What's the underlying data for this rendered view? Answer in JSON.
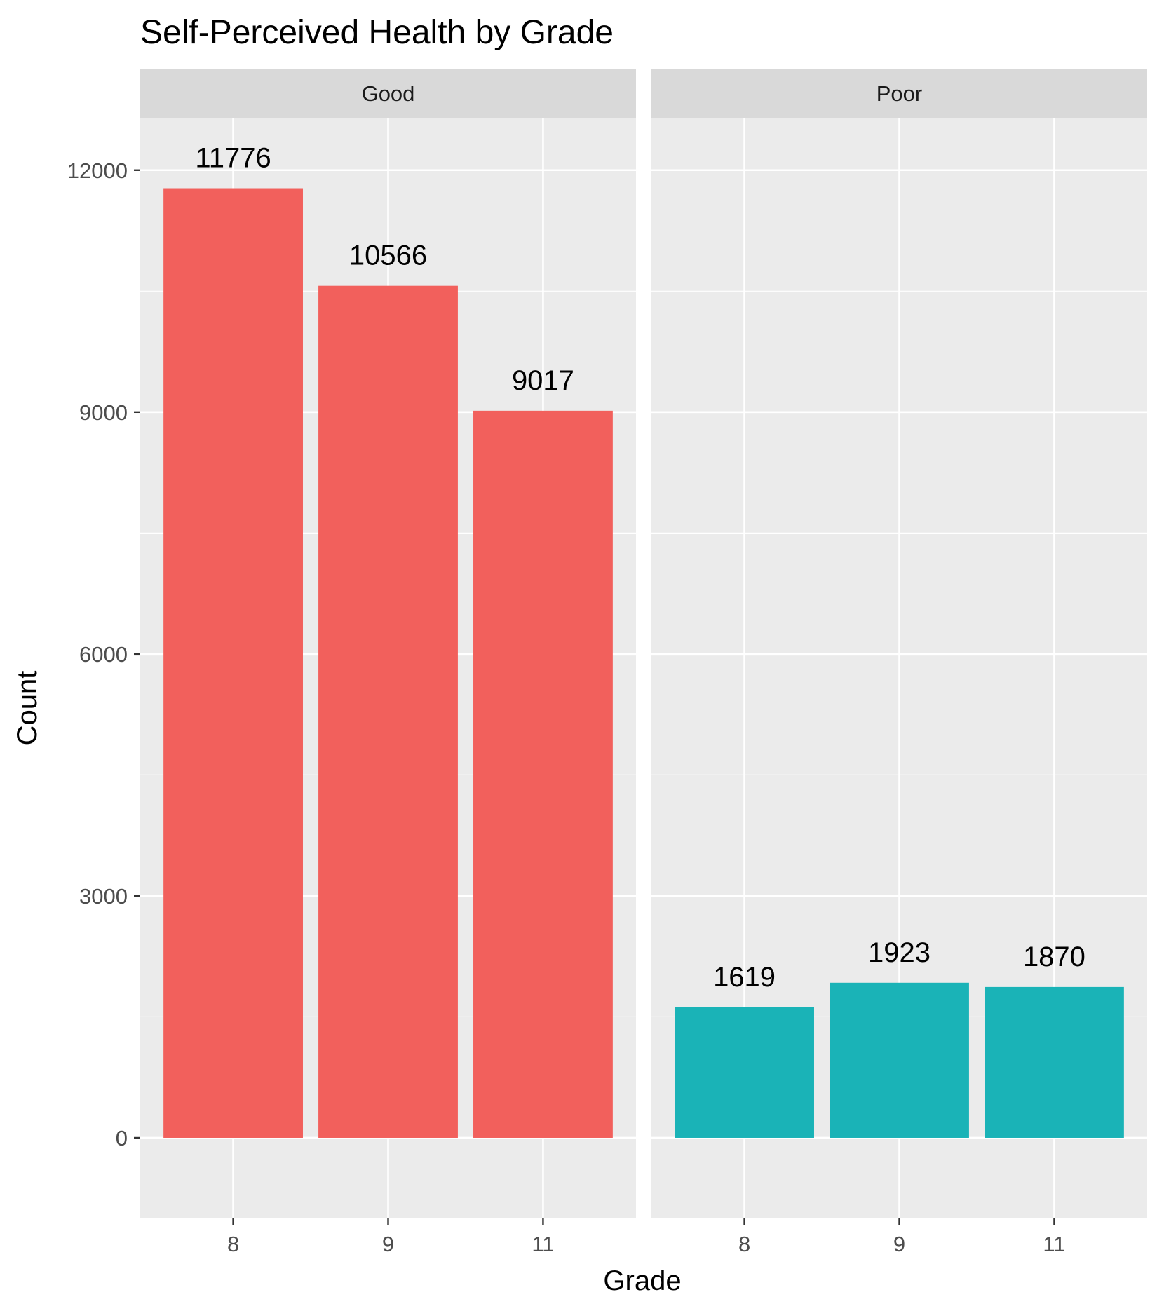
{
  "chart_data": {
    "type": "bar",
    "title": "Self-Perceived Health by Grade",
    "xlabel": "Grade",
    "ylabel": "Count",
    "categories": [
      "8",
      "9",
      "11"
    ],
    "ylim": [
      -1000,
      12650
    ],
    "yticks": [
      0,
      3000,
      6000,
      9000,
      12000
    ],
    "grid": true,
    "legend": "none",
    "facets": [
      {
        "name": "Good",
        "color": "#F2605C",
        "values": [
          11776,
          10566,
          9017
        ]
      },
      {
        "name": "Poor",
        "color": "#1AB3B7",
        "values": [
          1619,
          1923,
          1870
        ]
      }
    ]
  }
}
